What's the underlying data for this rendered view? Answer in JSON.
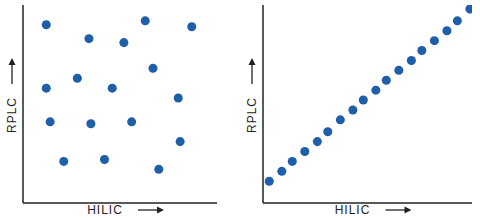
{
  "chart_data": [
    {
      "type": "scatter",
      "x_label": "HILIC",
      "y_label": "RPLC",
      "x": [
        1.2,
        3.4,
        5.2,
        6.3,
        8.7,
        6.7,
        2.8,
        1.2,
        4.6,
        8.0,
        1.4,
        3.5,
        5.6,
        8.1,
        2.1,
        4.2,
        7.0
      ],
      "values": [
        9.0,
        8.3,
        8.1,
        9.2,
        8.9,
        6.8,
        6.3,
        5.8,
        5.8,
        5.3,
        4.1,
        4.0,
        4.1,
        3.1,
        2.1,
        2.2,
        1.7
      ],
      "xlim": [
        0,
        10
      ],
      "ylim": [
        0,
        10
      ],
      "tick_labels": false,
      "color": "#1f5ea8",
      "marker": "circle"
    },
    {
      "type": "scatter",
      "x_label": "HILIC",
      "y_label": "RPLC",
      "x": [
        0.3,
        0.9,
        1.4,
        2.0,
        2.6,
        3.1,
        3.7,
        4.3,
        4.8,
        5.4,
        5.9,
        6.5,
        7.1,
        7.6,
        8.2,
        8.8,
        9.3,
        9.9
      ],
      "values": [
        1.1,
        1.6,
        2.1,
        2.6,
        3.1,
        3.6,
        4.2,
        4.7,
        5.2,
        5.7,
        6.2,
        6.7,
        7.2,
        7.7,
        8.2,
        8.7,
        9.2,
        9.8
      ],
      "xlim": [
        0,
        10
      ],
      "ylim": [
        0,
        10
      ],
      "tick_labels": false,
      "color": "#1f5ea8",
      "marker": "circle"
    }
  ]
}
